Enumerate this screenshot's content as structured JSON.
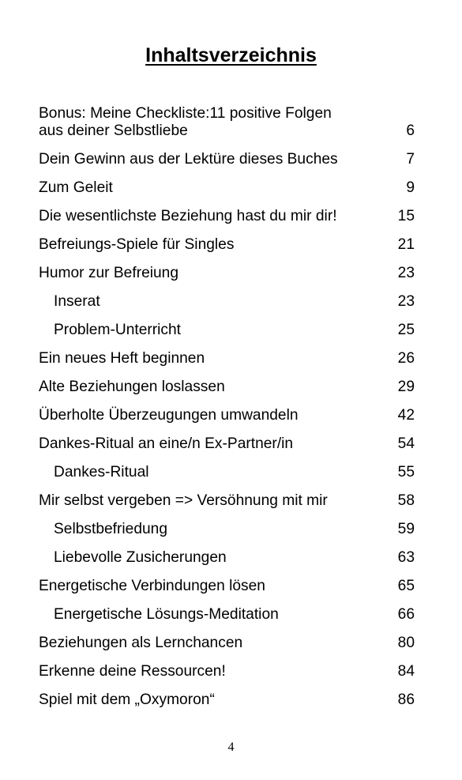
{
  "title": "Inhaltsverzeichnis",
  "entries": [
    {
      "line1": "Bonus: Meine Checkliste:11 positive Folgen",
      "text": "aus deiner Selbstliebe",
      "page": "6",
      "level": 1
    },
    {
      "text": "Dein Gewinn aus der Lektüre dieses Buches",
      "page": "7",
      "level": 1
    },
    {
      "text": "Zum Geleit",
      "page": "9",
      "level": 1
    },
    {
      "text": "Die wesentlichste Beziehung hast du mir dir!",
      "page": "15",
      "level": 1
    },
    {
      "text": "Befreiungs-Spiele für Singles",
      "page": "21",
      "level": 1
    },
    {
      "text": "Humor zur Befreiung",
      "page": "23",
      "level": 1
    },
    {
      "text": "Inserat",
      "page": "23",
      "level": 2
    },
    {
      "text": "Problem-Unterricht",
      "page": "25",
      "level": 2
    },
    {
      "text": "Ein neues Heft beginnen",
      "page": "26",
      "level": 1
    },
    {
      "text": "Alte Beziehungen loslassen",
      "page": "29",
      "level": 1
    },
    {
      "text": "Überholte Überzeugungen umwandeln",
      "page": "42",
      "level": 1
    },
    {
      "text": "Dankes-Ritual an eine/n Ex-Partner/in",
      "page": "54",
      "level": 1
    },
    {
      "text": "Dankes-Ritual",
      "page": "55",
      "level": 2
    },
    {
      "text": "Mir selbst vergeben => Versöhnung mit mir",
      "page": "58",
      "level": 1
    },
    {
      "text": "Selbstbefriedung",
      "page": "59",
      "level": 2
    },
    {
      "text": "Liebevolle Zusicherungen",
      "page": "63",
      "level": 2
    },
    {
      "text": "Energetische Verbindungen lösen",
      "page": "65",
      "level": 1
    },
    {
      "text": "Energetische Lösungs-Meditation",
      "page": "66",
      "level": 2
    },
    {
      "text": "Beziehungen als Lernchancen",
      "page": "80",
      "level": 1
    },
    {
      "text": "Erkenne deine Ressourcen!",
      "page": "84",
      "level": 1
    },
    {
      "text": "Spiel mit dem „Oxymoron“",
      "page": "86",
      "level": 1
    }
  ],
  "page_number": "4"
}
